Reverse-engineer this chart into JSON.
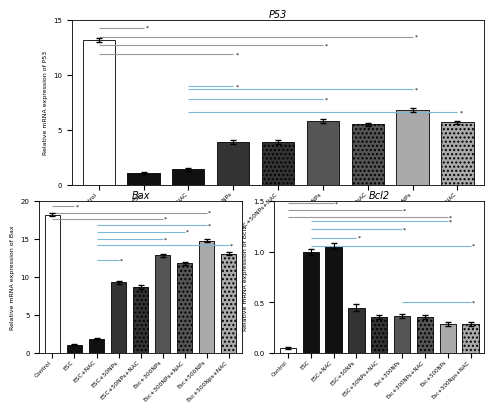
{
  "categories": [
    "Control",
    "ESC",
    "ESC+NAC",
    "ESC+50NPs",
    "ESC+50NPs+NAC",
    "Esc+300NPs",
    "Esc+300NPs+NAC",
    "Esc+500NPs",
    "Esc+500Nps+NAC"
  ],
  "p53_values": [
    13.2,
    1.1,
    1.4,
    3.9,
    3.9,
    5.8,
    5.5,
    6.8,
    5.7
  ],
  "p53_errors": [
    0.18,
    0.08,
    0.1,
    0.22,
    0.15,
    0.15,
    0.15,
    0.2,
    0.12
  ],
  "bax_values": [
    18.2,
    1.1,
    1.9,
    9.3,
    8.7,
    12.9,
    11.8,
    14.8,
    13.1
  ],
  "bax_errors": [
    0.22,
    0.08,
    0.1,
    0.22,
    0.22,
    0.2,
    0.2,
    0.2,
    0.2
  ],
  "bcl2_values": [
    0.05,
    1.0,
    1.06,
    0.45,
    0.36,
    0.37,
    0.36,
    0.29,
    0.29
  ],
  "bcl2_errors": [
    0.01,
    0.03,
    0.03,
    0.03,
    0.02,
    0.02,
    0.02,
    0.02,
    0.02
  ],
  "bar_colors_p53": [
    "#ffffff",
    "#111111",
    "#111111",
    "#333333",
    "#333333",
    "#555555",
    "#555555",
    "#aaaaaa",
    "#aaaaaa"
  ],
  "bar_colors_bax": [
    "#ffffff",
    "#111111",
    "#111111",
    "#333333",
    "#333333",
    "#555555",
    "#555555",
    "#aaaaaa",
    "#aaaaaa"
  ],
  "bar_colors_bcl2": [
    "#ffffff",
    "#111111",
    "#111111",
    "#333333",
    "#333333",
    "#555555",
    "#555555",
    "#aaaaaa",
    "#aaaaaa"
  ],
  "bar_hatches_p53": [
    "",
    "",
    "",
    "",
    "....",
    "",
    "....",
    "",
    "...."
  ],
  "bar_hatches_bax": [
    "",
    "",
    "",
    "",
    "....",
    "",
    "....",
    "",
    "...."
  ],
  "bar_hatches_bcl2": [
    "",
    "",
    "",
    "",
    "....",
    "",
    "....",
    "",
    "...."
  ],
  "p53_ylim": [
    0,
    15
  ],
  "bax_ylim": [
    0,
    20
  ],
  "bcl2_ylim": [
    0,
    1.5
  ],
  "p53_yticks": [
    0,
    5,
    10,
    15
  ],
  "bax_yticks": [
    0,
    5,
    10,
    15,
    20
  ],
  "bcl2_yticks": [
    0.0,
    0.5,
    1.0,
    1.5
  ],
  "p53_ylabel": "Relative mRNA expression of P53",
  "bax_ylabel": "Relative mRNA expression of Bax",
  "bcl2_ylabel": "Relative mRNA expression of Bcl2",
  "p53_title": "P53",
  "bax_title": "Bax",
  "bcl2_title": "Bcl2",
  "sig_color_gray": "#999999",
  "sig_color_blue": "#7ab8d4"
}
